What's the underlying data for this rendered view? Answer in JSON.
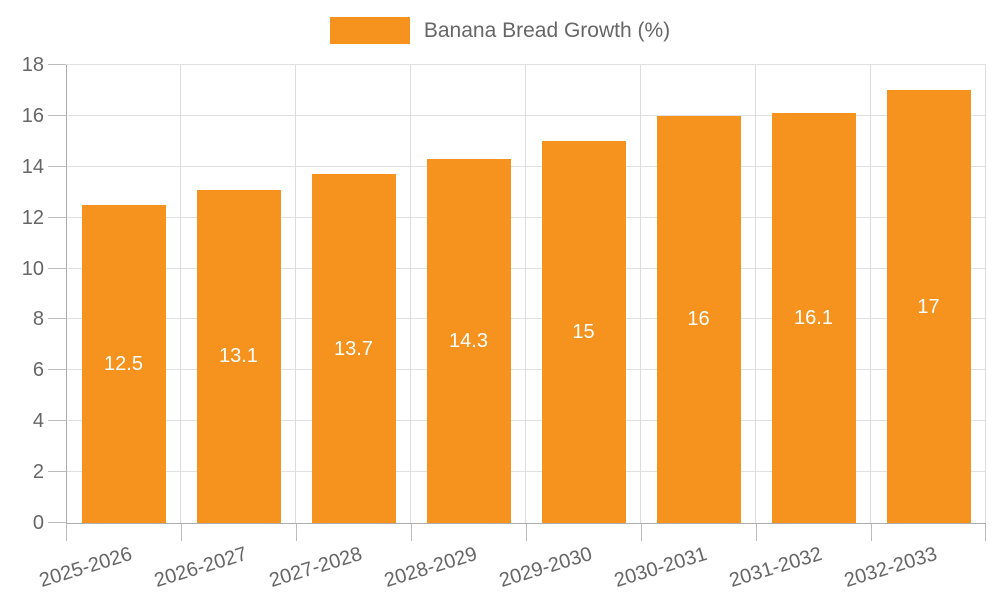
{
  "legend": {
    "label": "Banana Bread Growth (%)"
  },
  "colors": {
    "bar": "#F6921E",
    "bar_label": "#FFFFFF",
    "axis_text": "#666666",
    "legend_text": "#666666",
    "grid_h": "#E0E0E0",
    "grid_v": "#DCDCDC",
    "axis_line": "#ADADAD",
    "tick": "#BBBBBB"
  },
  "chart_data": {
    "type": "bar",
    "title": "",
    "series_name": "Banana Bread Growth (%)",
    "categories": [
      "2025-2026",
      "2026-2027",
      "2027-2028",
      "2028-2029",
      "2029-2030",
      "2030-2031",
      "2031-2032",
      "2032-2033"
    ],
    "values": [
      12.5,
      13.1,
      13.7,
      14.3,
      15,
      16,
      16.1,
      17
    ],
    "value_labels": [
      "12.5",
      "13.1",
      "13.7",
      "14.3",
      "15",
      "16",
      "16.1",
      "17"
    ],
    "xlabel": "",
    "ylabel": "",
    "ylim": [
      0,
      18
    ],
    "yticks": [
      0,
      2,
      4,
      6,
      8,
      10,
      12,
      14,
      16,
      18
    ],
    "grid": true,
    "legend_position": "top",
    "x_label_rotation_deg": -17
  }
}
